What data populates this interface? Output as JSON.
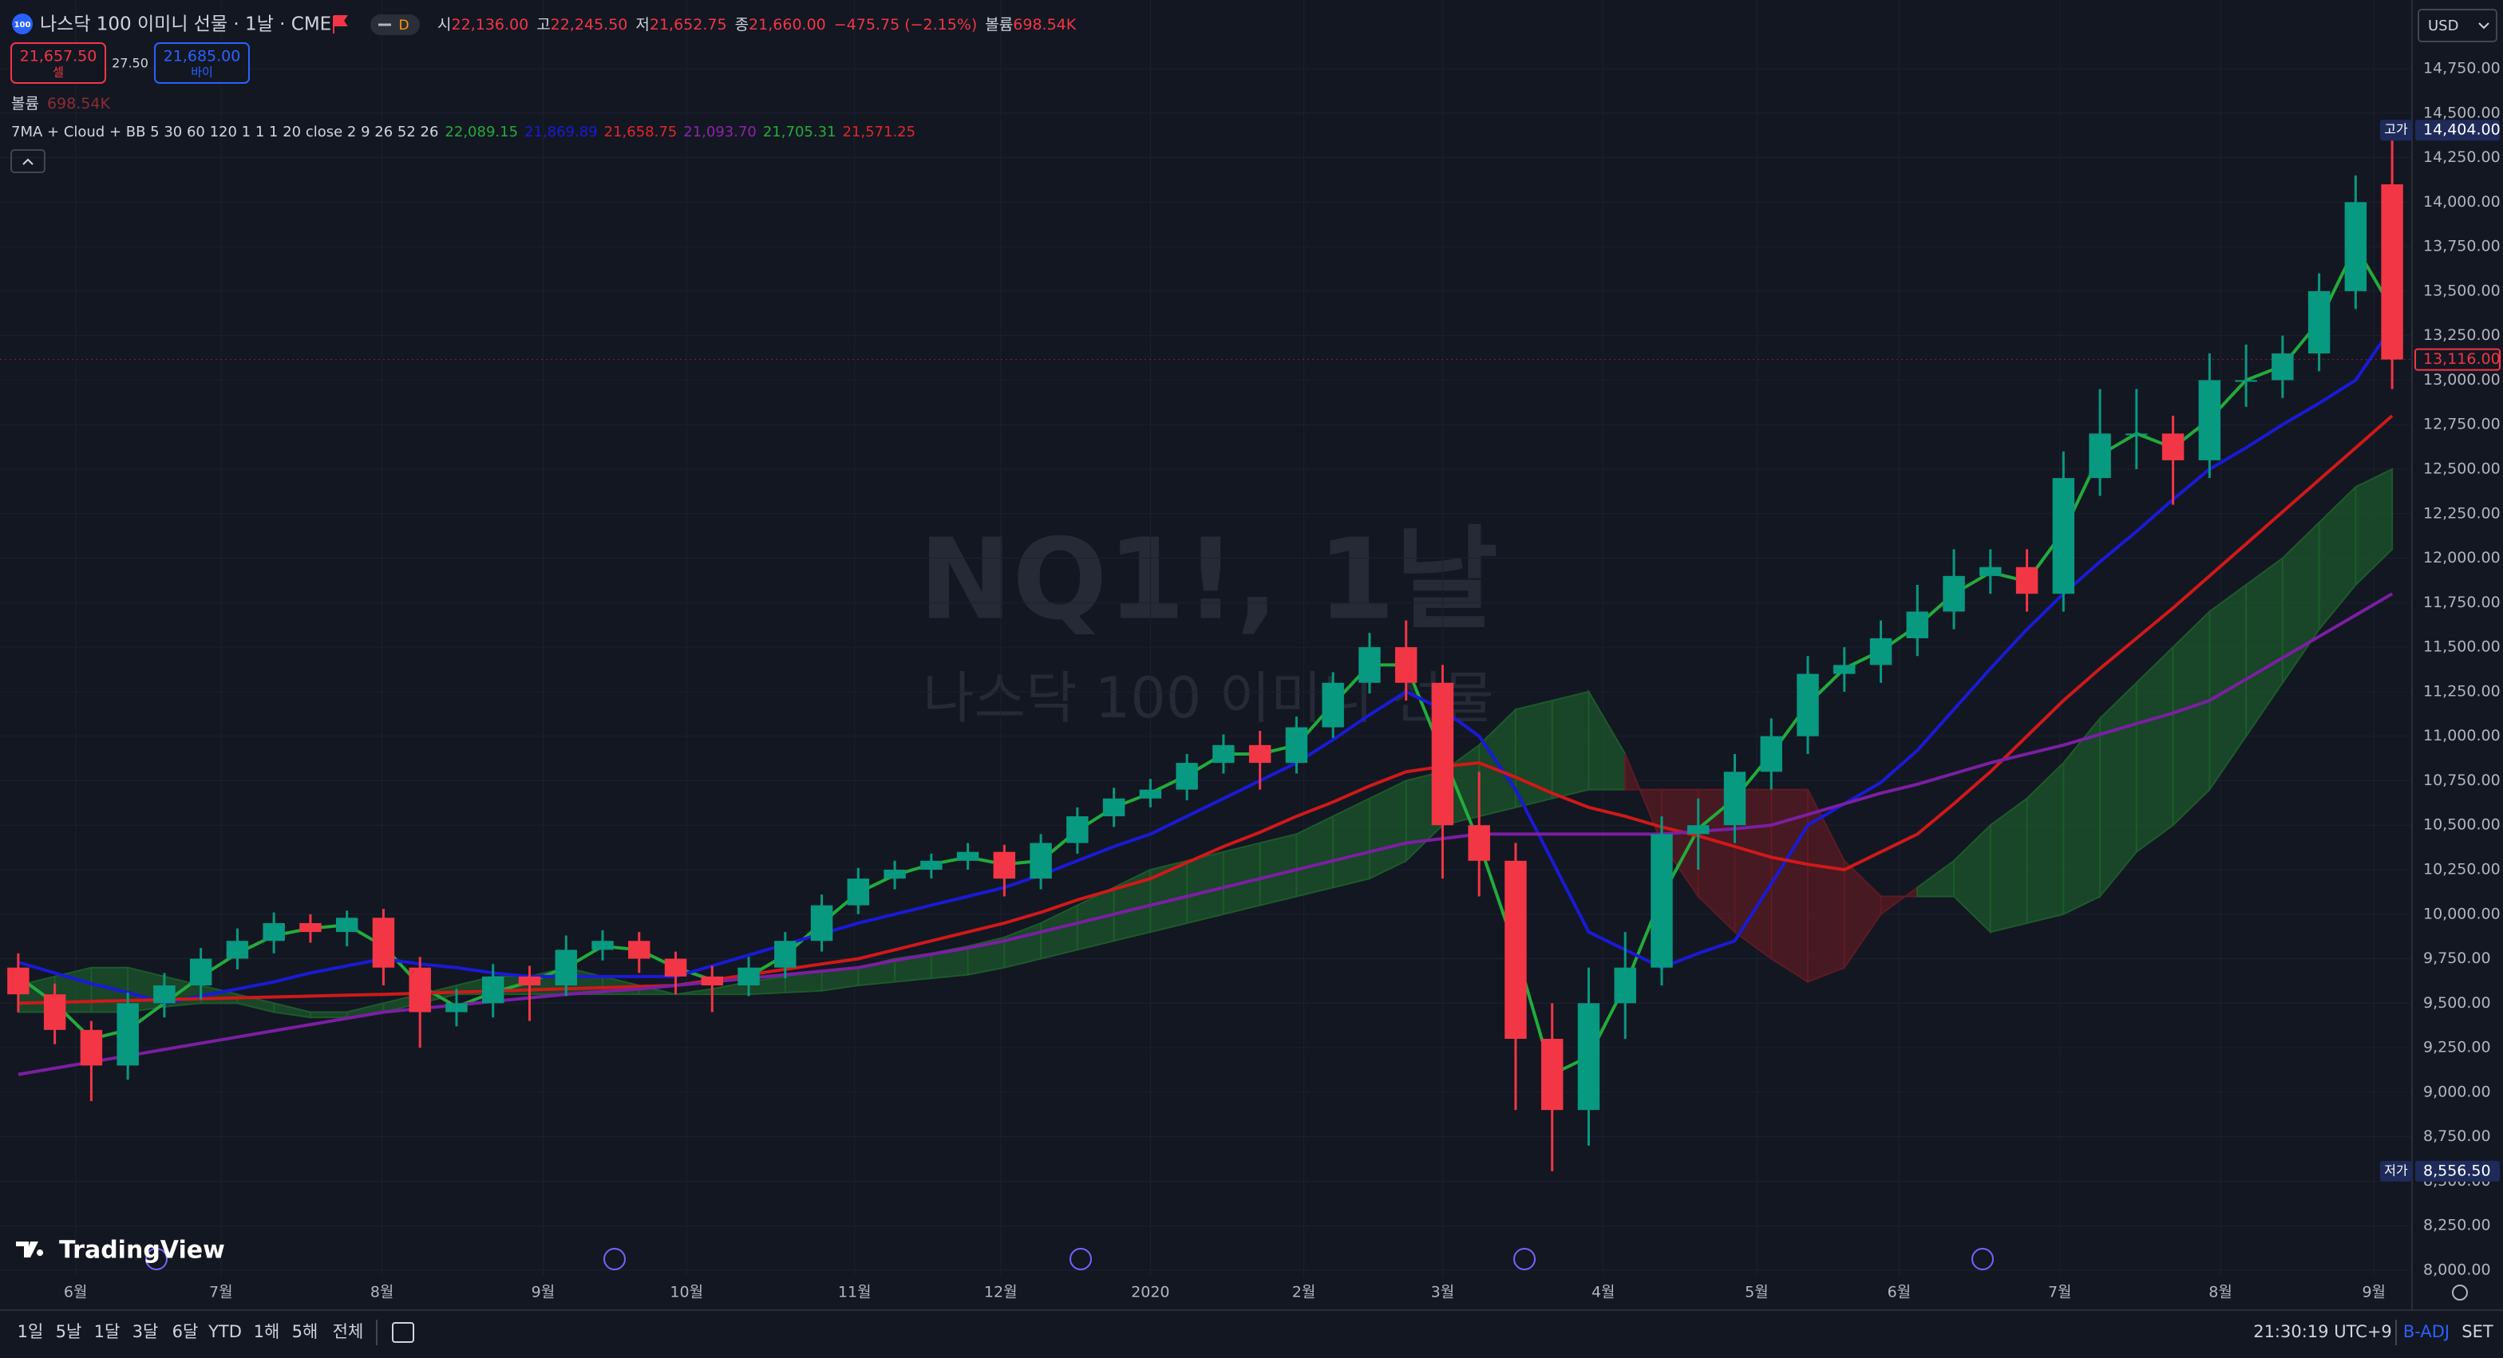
{
  "header": {
    "logo": "100",
    "symbol": "나스닥 100 이미니 선물 · 1날 · CME",
    "interval_badge": "D",
    "ohlc": [
      {
        "label": "시",
        "value": "22,136.00"
      },
      {
        "label": "고",
        "value": "22,245.50"
      },
      {
        "label": "저",
        "value": "21,652.75"
      },
      {
        "label": "종",
        "value": "21,660.00"
      }
    ],
    "change": "−475.75 (−2.15%)",
    "volume_label": "볼륨",
    "volume": "698.54K",
    "sell": {
      "price": "21,657.50",
      "label": "셀"
    },
    "spread": "27.50",
    "buy": {
      "price": "21,685.00",
      "label": "바이"
    },
    "volume_row": {
      "label": "볼륨",
      "value": "698.54K"
    },
    "indicator": {
      "name": "7MA + Cloud + BB 5 30 60 120 1 1 1 20 close 2 9 26 52 26",
      "values": [
        {
          "text": "22,089.15",
          "color": "#22ab3c"
        },
        {
          "text": "21,869.89",
          "color": "#1a1ad6"
        },
        {
          "text": "21,658.75",
          "color": "#e0262b"
        },
        {
          "text": "21,093.70",
          "color": "#8e24aa"
        },
        {
          "text": "21,705.31",
          "color": "#22ab3c"
        },
        {
          "text": "21,571.25",
          "color": "#e0262b"
        }
      ]
    },
    "watermark": {
      "title": "NQ1!, 1날",
      "subtitle": "나스닥 100 이미니 선물"
    },
    "brand": "TradingView",
    "currency": "USD"
  },
  "toolbar": {
    "ranges": [
      "1일",
      "5날",
      "1달",
      "3달",
      "6달",
      "YTD",
      "1해",
      "5해",
      "전체"
    ],
    "time": "21:30:19 UTC+9",
    "adjust": "B-ADJ",
    "set": "SET"
  },
  "chart_data": {
    "type": "candlestick",
    "up_color": "#089981",
    "down_color": "#f23645",
    "x": [
      0,
      1,
      2,
      3,
      4,
      5,
      6,
      7,
      8,
      9,
      10,
      11,
      12,
      13,
      14,
      15,
      16,
      17,
      18,
      19,
      20,
      21,
      22,
      23,
      24,
      25,
      26,
      27,
      28,
      29,
      30,
      31,
      32,
      33,
      34,
      35,
      36,
      37,
      38,
      39,
      40,
      41,
      42,
      43,
      44,
      45,
      46,
      47,
      48,
      49,
      50,
      51,
      52,
      53,
      54,
      55,
      56,
      57,
      58,
      59,
      60,
      61,
      62,
      63,
      64,
      65
    ],
    "open": [
      9700,
      9550,
      9350,
      9150,
      9500,
      9600,
      9750,
      9850,
      9950,
      9900,
      9980,
      9700,
      9450,
      9500,
      9650,
      9600,
      9800,
      9850,
      9750,
      9650,
      9600,
      9700,
      9850,
      10050,
      10200,
      10250,
      10300,
      10350,
      10200,
      10400,
      10550,
      10650,
      10700,
      10850,
      10950,
      10850,
      11050,
      11300,
      11500,
      11300,
      10500,
      10300,
      9300,
      8900,
      9500,
      9700,
      10450,
      10500,
      10800,
      11000,
      11350,
      11400,
      11550,
      11700,
      11900,
      11950,
      11800,
      12450,
      12700,
      12700,
      12550,
      13000,
      13000,
      13150,
      13500,
      14100
    ],
    "high": [
      9780,
      9610,
      9400,
      9560,
      9670,
      9810,
      9920,
      10010,
      10000,
      10020,
      10030,
      9760,
      9580,
      9720,
      9710,
      9880,
      9910,
      9900,
      9790,
      9710,
      9760,
      9900,
      10110,
      10260,
      10300,
      10340,
      10400,
      10390,
      10450,
      10600,
      10710,
      10760,
      10900,
      11010,
      11030,
      11110,
      11360,
      11580,
      11650,
      11400,
      10800,
      10400,
      9500,
      9700,
      9900,
      10550,
      10650,
      10900,
      11100,
      11450,
      11500,
      11650,
      11850,
      12050,
      12050,
      12050,
      12600,
      12950,
      12950,
      12800,
      13150,
      13200,
      13250,
      13600,
      14150,
      14404
    ],
    "low": [
      9450,
      9270,
      8950,
      9070,
      9420,
      9520,
      9690,
      9780,
      9840,
      9820,
      9600,
      9250,
      9370,
      9420,
      9400,
      9540,
      9740,
      9670,
      9550,
      9450,
      9540,
      9640,
      9790,
      10000,
      10140,
      10200,
      10250,
      10100,
      10140,
      10340,
      10490,
      10600,
      10640,
      10790,
      10700,
      10790,
      10990,
      11240,
      11200,
      10200,
      10100,
      8900,
      8556.5,
      8700,
      9300,
      9600,
      10250,
      10400,
      10700,
      10900,
      11250,
      11300,
      11450,
      11600,
      11800,
      11700,
      11700,
      12350,
      12500,
      12300,
      12450,
      12850,
      12900,
      13050,
      13400,
      12950
    ],
    "close": [
      9550,
      9350,
      9150,
      9500,
      9600,
      9750,
      9850,
      9950,
      9900,
      9980,
      9700,
      9450,
      9500,
      9650,
      9600,
      9800,
      9850,
      9750,
      9650,
      9600,
      9700,
      9850,
      10050,
      10200,
      10250,
      10300,
      10350,
      10200,
      10400,
      10550,
      10650,
      10700,
      10850,
      10950,
      10850,
      11050,
      11300,
      11500,
      11300,
      10500,
      10300,
      9300,
      8900,
      9500,
      9700,
      10450,
      10500,
      10800,
      11000,
      11350,
      11400,
      11550,
      11700,
      11900,
      11950,
      11800,
      12450,
      12700,
      12700,
      12550,
      13000,
      13000,
      13150,
      13500,
      14000,
      13116
    ],
    "lines": [
      {
        "color": "#22ab3c",
        "values": [
          9650,
          9500,
          9300,
          9350,
          9500,
          9650,
          9780,
          9880,
          9920,
          9940,
          9820,
          9600,
          9480,
          9560,
          9620,
          9700,
          9820,
          9800,
          9700,
          9630,
          9650,
          9770,
          9950,
          10120,
          10220,
          10280,
          10320,
          10280,
          10300,
          10470,
          10600,
          10680,
          10780,
          10900,
          10900,
          10950,
          11180,
          11400,
          11400,
          10900,
          10400,
          9800,
          9100,
          9200,
          9600,
          10100,
          10480,
          10650,
          10900,
          11180,
          11380,
          11480,
          11620,
          11800,
          11920,
          11870,
          12150,
          12580,
          12700,
          12620,
          12780,
          13000,
          13080,
          13330,
          13750,
          13400
        ]
      },
      {
        "color": "#1a1ad6",
        "values": [
          9730,
          9670,
          9610,
          9560,
          9500,
          9540,
          9580,
          9620,
          9670,
          9710,
          9750,
          9720,
          9700,
          9670,
          9650,
          9650,
          9650,
          9650,
          9650,
          9710,
          9770,
          9830,
          9890,
          9950,
          10000,
          10050,
          10100,
          10150,
          10220,
          10300,
          10380,
          10450,
          10550,
          10650,
          10750,
          10850,
          10980,
          11120,
          11250,
          11150,
          11000,
          10700,
          10300,
          9900,
          9800,
          9700,
          9780,
          9850,
          10170,
          10500,
          10620,
          10740,
          10920,
          11150,
          11380,
          11600,
          11800,
          11980,
          12150,
          12330,
          12500,
          12620,
          12750,
          12870,
          13000,
          13300
        ]
      },
      {
        "color": "#d01919",
        "values": [
          9500,
          9505,
          9510,
          9515,
          9520,
          9525,
          9530,
          9535,
          9540,
          9545,
          9550,
          9556,
          9562,
          9568,
          9575,
          9581,
          9587,
          9594,
          9600,
          9630,
          9660,
          9690,
          9720,
          9750,
          9800,
          9850,
          9900,
          9950,
          10010,
          10080,
          10140,
          10200,
          10290,
          10380,
          10460,
          10550,
          10630,
          10720,
          10800,
          10830,
          10850,
          10770,
          10680,
          10600,
          10550,
          10490,
          10440,
          10380,
          10320,
          10280,
          10250,
          10350,
          10450,
          10620,
          10800,
          11000,
          11200,
          11380,
          11550,
          11720,
          11900,
          12080,
          12260,
          12440,
          12620,
          12800
        ]
      },
      {
        "color": "#7b1fa2",
        "values": [
          9100,
          9135,
          9170,
          9205,
          9240,
          9275,
          9310,
          9345,
          9380,
          9415,
          9450,
          9470,
          9490,
          9510,
          9530,
          9550,
          9565,
          9580,
          9600,
          9620,
          9640,
          9660,
          9680,
          9700,
          9740,
          9775,
          9810,
          9850,
          9900,
          9950,
          10000,
          10050,
          10100,
          10150,
          10200,
          10250,
          10300,
          10350,
          10400,
          10425,
          10450,
          10450,
          10450,
          10450,
          10450,
          10450,
          10465,
          10480,
          10500,
          10560,
          10620,
          10680,
          10730,
          10790,
          10850,
          10900,
          10950,
          11010,
          11070,
          11130,
          11200,
          11320,
          11440,
          11560,
          11680,
          11800
        ]
      }
    ],
    "cloud": {
      "up_color": "#1d5a2b",
      "down_color": "#5e1b22",
      "span_a": [
        9600,
        9650,
        9700,
        9700,
        9650,
        9600,
        9550,
        9500,
        9450,
        9450,
        9500,
        9550,
        9600,
        9650,
        9650,
        9700,
        9650,
        9600,
        9550,
        9580,
        9620,
        9650,
        9680,
        9700,
        9750,
        9780,
        9820,
        9870,
        9950,
        10050,
        10150,
        10250,
        10300,
        10350,
        10400,
        10450,
        10550,
        10650,
        10750,
        10800,
        10950,
        11150,
        11200,
        11250,
        10900,
        10400,
        10100,
        9900,
        9750,
        9620,
        9700,
        10000,
        10150,
        10300,
        10500,
        10650,
        10850,
        11100,
        11300,
        11500,
        11700,
        11850,
        12000,
        12200,
        12400,
        12500
      ],
      "span_b": [
        9450,
        9450,
        9450,
        9450,
        9480,
        9500,
        9500,
        9450,
        9420,
        9420,
        9450,
        9500,
        9550,
        9550,
        9550,
        9550,
        9550,
        9550,
        9550,
        9550,
        9550,
        9560,
        9570,
        9600,
        9620,
        9640,
        9660,
        9700,
        9750,
        9800,
        9850,
        9900,
        9950,
        10000,
        10050,
        10100,
        10150,
        10200,
        10300,
        10500,
        10550,
        10600,
        10650,
        10700,
        10700,
        10700,
        10700,
        10700,
        10700,
        10700,
        10300,
        10100,
        10100,
        10100,
        9900,
        9950,
        10000,
        10100,
        10350,
        10500,
        10700,
        11000,
        11300,
        11600,
        11850,
        12050
      ]
    },
    "xlim": [
      -0.5,
      65.5
    ],
    "xticks": [
      {
        "value": 1.57,
        "label": "6월"
      },
      {
        "value": 5.55,
        "label": "7월"
      },
      {
        "value": 9.96,
        "label": "8월"
      },
      {
        "value": 14.37,
        "label": "9월"
      },
      {
        "value": 18.3,
        "label": "10월"
      },
      {
        "value": 22.9,
        "label": "11월"
      },
      {
        "value": 26.9,
        "label": "12월"
      },
      {
        "value": 31.0,
        "label": "2020"
      },
      {
        "value": 35.2,
        "label": "2월"
      },
      {
        "value": 39.0,
        "label": "3월"
      },
      {
        "value": 43.4,
        "label": "4월"
      },
      {
        "value": 47.6,
        "label": "5월"
      },
      {
        "value": 51.5,
        "label": "6월"
      },
      {
        "value": 55.9,
        "label": "7월"
      },
      {
        "value": 60.3,
        "label": "8월"
      },
      {
        "value": 64.5,
        "label": "9월"
      }
    ],
    "ylim": [
      8000,
      14750
    ],
    "yticks": [
      {
        "value": 8000,
        "label": "8,000.00"
      },
      {
        "value": 8250,
        "label": "8,250.00"
      },
      {
        "value": 8500,
        "label": "8,500.00"
      },
      {
        "value": 8750,
        "label": "8,750.00"
      },
      {
        "value": 9000,
        "label": "9,000.00"
      },
      {
        "value": 9250,
        "label": "9,250.00"
      },
      {
        "value": 9500,
        "label": "9,500.00"
      },
      {
        "value": 9750,
        "label": "9,750.00"
      },
      {
        "value": 10000,
        "label": "10,000.00"
      },
      {
        "value": 10250,
        "label": "10,250.00"
      },
      {
        "value": 10500,
        "label": "10,500.00"
      },
      {
        "value": 10750,
        "label": "10,750.00"
      },
      {
        "value": 11000,
        "label": "11,000.00"
      },
      {
        "value": 11250,
        "label": "11,250.00"
      },
      {
        "value": 11500,
        "label": "11,500.00"
      },
      {
        "value": 11750,
        "label": "11,750.00"
      },
      {
        "value": 12000,
        "label": "12,000.00"
      },
      {
        "value": 12250,
        "label": "12,250.00"
      },
      {
        "value": 12500,
        "label": "12,500.00"
      },
      {
        "value": 12750,
        "label": "12,750.00"
      },
      {
        "value": 13000,
        "label": "13,000.00"
      },
      {
        "value": 13250,
        "label": "13,250.00"
      },
      {
        "value": 13500,
        "label": "13,500.00"
      },
      {
        "value": 13750,
        "label": "13,750.00"
      },
      {
        "value": 14000,
        "label": "14,000.00"
      },
      {
        "value": 14250,
        "label": "14,250.00"
      },
      {
        "value": 14500,
        "label": "14,500.00"
      },
      {
        "value": 14750,
        "label": "14,750.00"
      }
    ],
    "grid": true,
    "markers": [
      {
        "tag": "고가",
        "price": {
          "value": 14404,
          "label": "14,404.00"
        }
      },
      {
        "tag": "저가",
        "price": {
          "value": 8556.5,
          "label": "8,556.50"
        }
      }
    ],
    "last_price": {
      "value": 13116,
      "label": "13,116.00"
    }
  }
}
